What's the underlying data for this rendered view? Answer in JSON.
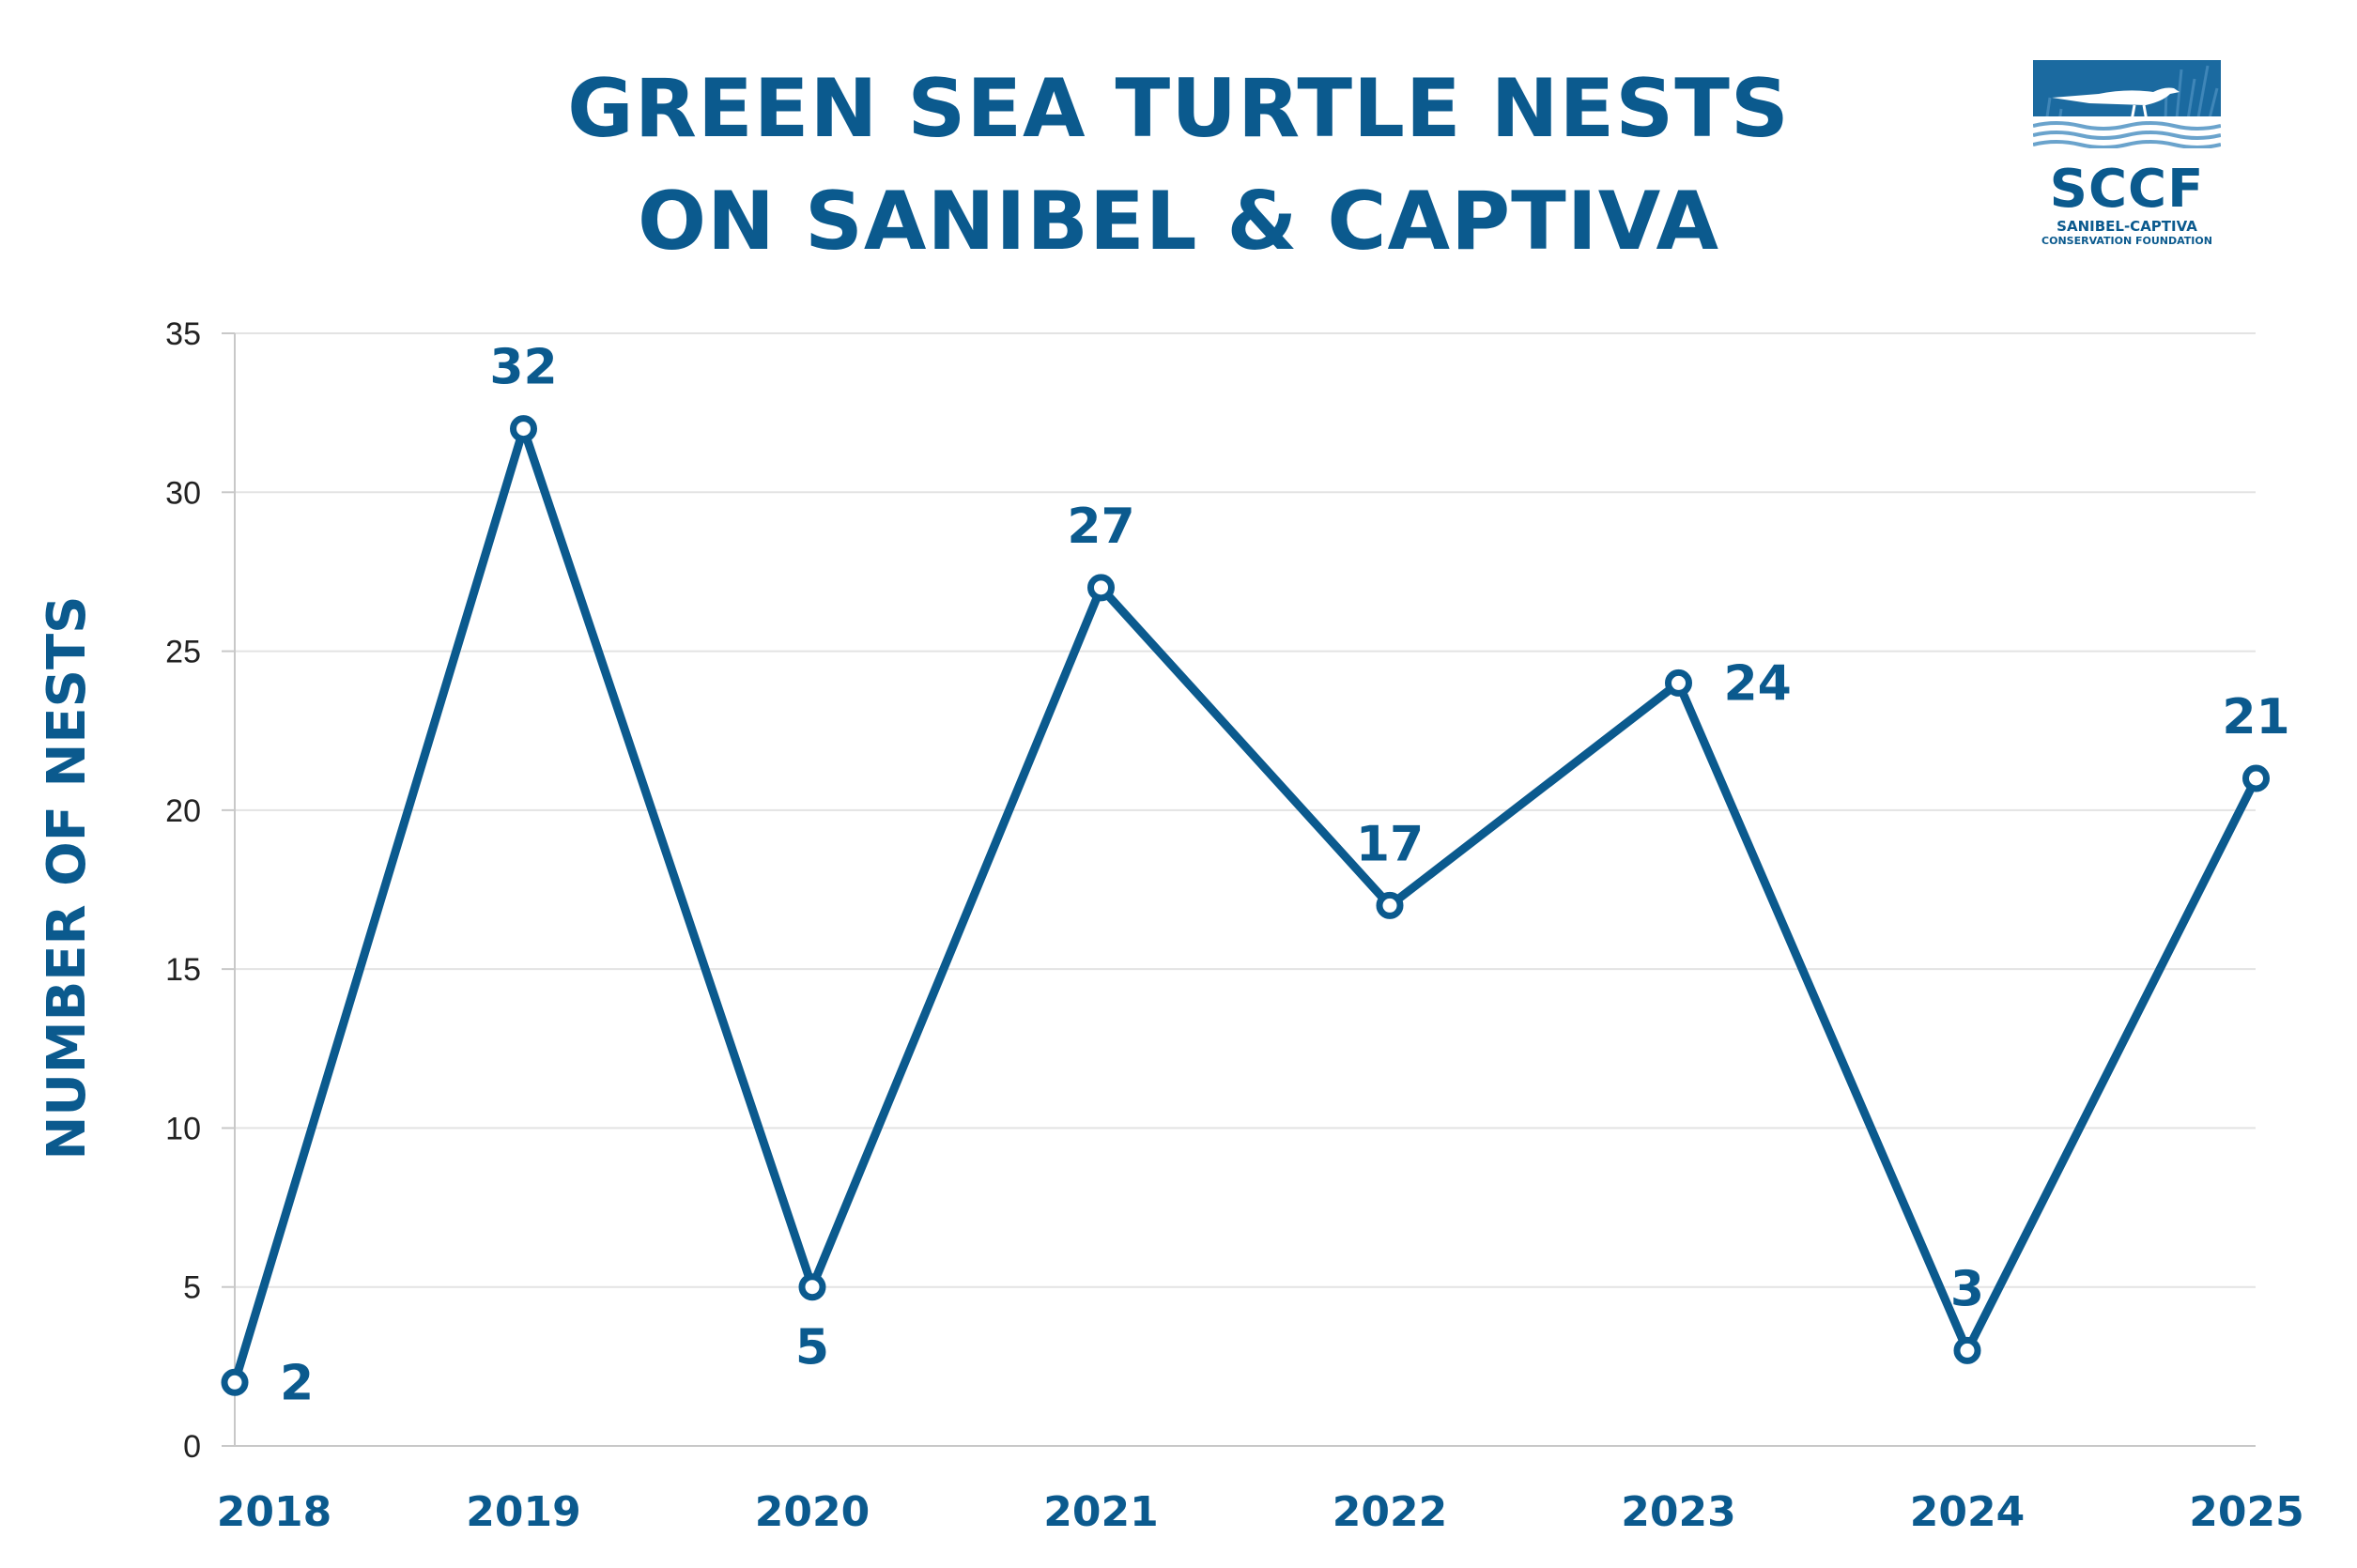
{
  "title": {
    "line1": "GREEN SEA TURTLE NESTS",
    "line2": "ON SANIBEL & CAPTIVA"
  },
  "logo": {
    "icon": "heron-over-water-icon",
    "wordmark": "SCCF",
    "subtitle1": "SANIBEL-CAPTIVA",
    "subtitle2": "CONSERVATION FOUNDATION"
  },
  "colors": {
    "brand": "#0b5a8e",
    "grid": "#e3e3e3",
    "axis": "#c8c8c8",
    "tick_text": "#222222"
  },
  "chart_data": {
    "type": "line",
    "title": "GREEN SEA TURTLE NESTS ON SANIBEL & CAPTIVA",
    "xlabel": "",
    "ylabel": "NUMBER OF NESTS",
    "categories": [
      "2018",
      "2019",
      "2020",
      "2021",
      "2022",
      "2023",
      "2024",
      "2025"
    ],
    "series": [
      {
        "name": "Green sea turtle nests",
        "values": [
          2,
          32,
          5,
          27,
          17,
          24,
          3,
          21
        ]
      }
    ],
    "data_labels": [
      "2",
      "32",
      "5",
      "27",
      "17",
      "24",
      "3",
      "21"
    ],
    "ylim": [
      0,
      35
    ],
    "yticks": [
      0,
      5,
      10,
      15,
      20,
      25,
      30,
      35
    ],
    "grid": true,
    "legend": "none"
  }
}
